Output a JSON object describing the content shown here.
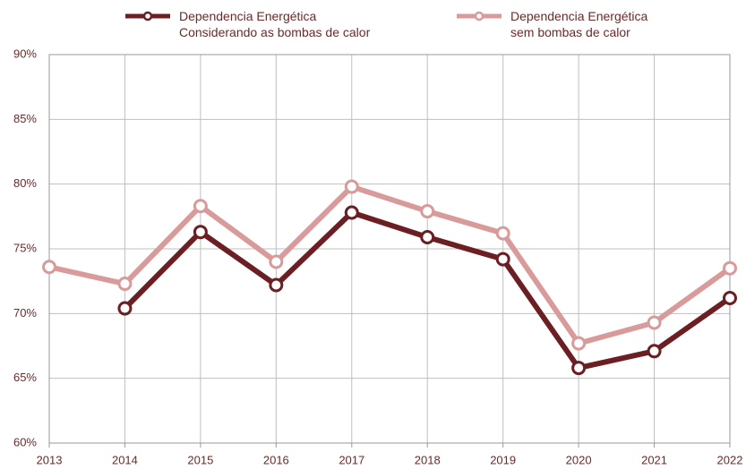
{
  "chart_data": {
    "type": "line",
    "categories": [
      "2013",
      "2014",
      "2015",
      "2016",
      "2017",
      "2018",
      "2019",
      "2020",
      "2021",
      "2022"
    ],
    "series": [
      {
        "name": "Dependencia Energética\nConsiderando as bombas de calor",
        "color": "#6b1f22",
        "values": [
          null,
          70.4,
          76.3,
          72.2,
          77.8,
          75.9,
          74.2,
          65.8,
          67.1,
          71.2
        ]
      },
      {
        "name": "Dependencia Energética\nsem bombas de calor",
        "color": "#d99a9a",
        "values": [
          73.6,
          72.3,
          78.3,
          74.0,
          79.8,
          77.9,
          76.2,
          67.7,
          69.3,
          73.5
        ]
      }
    ],
    "ylim": [
      60,
      90
    ],
    "yticks": [
      {
        "value": 60,
        "label": "60%"
      },
      {
        "value": 65,
        "label": "65%"
      },
      {
        "value": 70,
        "label": "70%"
      },
      {
        "value": 75,
        "label": "75%"
      },
      {
        "value": 80,
        "label": "80%"
      },
      {
        "value": 85,
        "label": "85%"
      },
      {
        "value": 90,
        "label": "90%"
      }
    ],
    "grid": true,
    "legend": "top"
  }
}
